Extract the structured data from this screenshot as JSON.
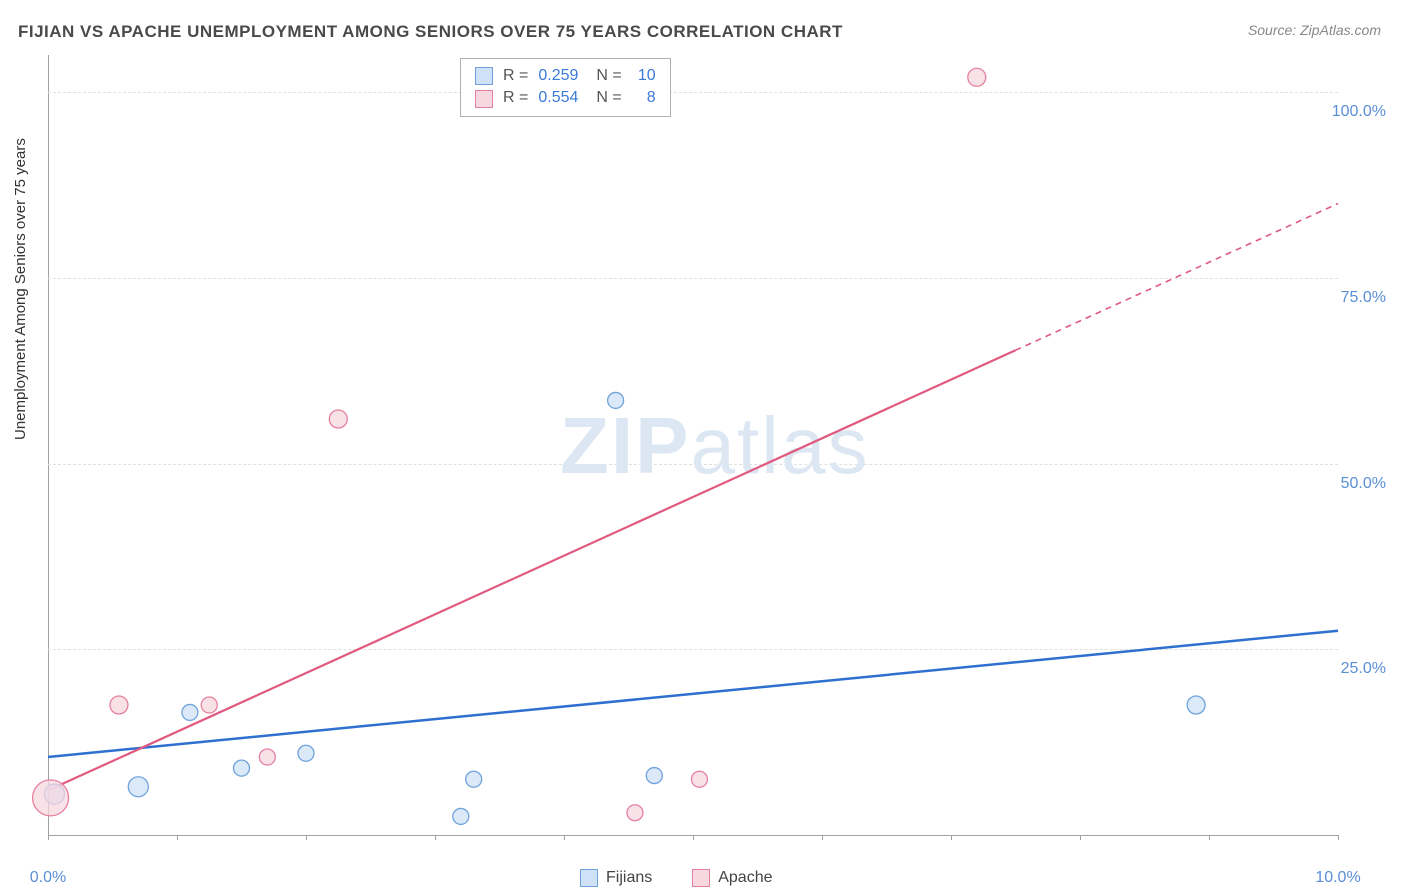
{
  "title": "FIJIAN VS APACHE UNEMPLOYMENT AMONG SENIORS OVER 75 YEARS CORRELATION CHART",
  "source": "Source: ZipAtlas.com",
  "ylabel": "Unemployment Among Seniors over 75 years",
  "watermark_a": "ZIP",
  "watermark_b": "atlas",
  "chart": {
    "type": "scatter-correlation",
    "background_color": "#ffffff",
    "grid_color": "#e0e0e0",
    "axis_color": "#a0a0a0",
    "text_color": "#4a4a4a",
    "tick_color": "#5a8fd6",
    "xlim": [
      0,
      10
    ],
    "ylim": [
      0,
      105
    ],
    "x_ticks": [
      0,
      1,
      2,
      3,
      4,
      5,
      6,
      7,
      8,
      9,
      10
    ],
    "x_tick_labels": {
      "0": "0.0%",
      "10": "10.0%"
    },
    "y_gridlines": [
      25,
      50,
      75,
      100
    ],
    "y_tick_labels": {
      "25": "25.0%",
      "50": "50.0%",
      "75": "75.0%",
      "100": "100.0%"
    },
    "series": [
      {
        "name": "Fijians",
        "color_fill": "#cfe1f6",
        "color_stroke": "#6fa3dc",
        "line_color": "#2f6fd0",
        "R": "0.259",
        "N": "10",
        "points": [
          {
            "x": 0.05,
            "y": 5.5,
            "r": 10
          },
          {
            "x": 0.7,
            "y": 6.5,
            "r": 10
          },
          {
            "x": 1.1,
            "y": 16.5,
            "r": 8
          },
          {
            "x": 1.5,
            "y": 9.0,
            "r": 8
          },
          {
            "x": 2.0,
            "y": 11.0,
            "r": 8
          },
          {
            "x": 3.2,
            "y": 2.5,
            "r": 8
          },
          {
            "x": 3.3,
            "y": 7.5,
            "r": 8
          },
          {
            "x": 4.7,
            "y": 8.0,
            "r": 8
          },
          {
            "x": 4.4,
            "y": 58.5,
            "r": 8
          },
          {
            "x": 8.9,
            "y": 17.5,
            "r": 9
          }
        ],
        "trend": {
          "x1": 0,
          "y1": 10.5,
          "x2": 10,
          "y2": 27.5,
          "dash_from_x": null
        }
      },
      {
        "name": "Apache",
        "color_fill": "#f7d7e0",
        "color_stroke": "#e6809f",
        "line_color": "#e05a80",
        "R": "0.554",
        "N": "8",
        "points": [
          {
            "x": 0.02,
            "y": 5.0,
            "r": 18
          },
          {
            "x": 0.55,
            "y": 17.5,
            "r": 9
          },
          {
            "x": 1.25,
            "y": 17.5,
            "r": 8
          },
          {
            "x": 1.7,
            "y": 10.5,
            "r": 8
          },
          {
            "x": 2.25,
            "y": 56.0,
            "r": 9
          },
          {
            "x": 4.55,
            "y": 3.0,
            "r": 8
          },
          {
            "x": 5.05,
            "y": 7.5,
            "r": 8
          },
          {
            "x": 7.2,
            "y": 102.0,
            "r": 9
          }
        ],
        "trend": {
          "x1": 0,
          "y1": 6.0,
          "x2": 10,
          "y2": 85.0,
          "dash_from_x": 7.5
        }
      }
    ],
    "legend_bottom": [
      "Fijians",
      "Apache"
    ]
  }
}
